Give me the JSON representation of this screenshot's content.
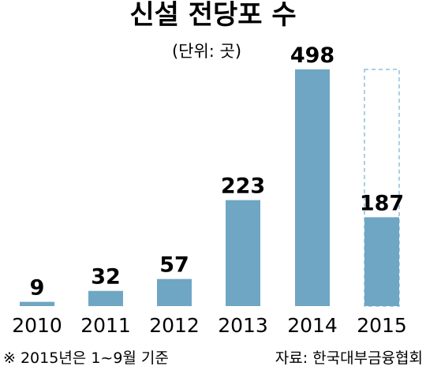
{
  "chart_data": {
    "type": "bar",
    "title": "신설 전당포 수",
    "unit": "(단위: 곳)",
    "categories": [
      "2010",
      "2011",
      "2012",
      "2013",
      "2014",
      "2015"
    ],
    "values": [
      9,
      32,
      57,
      223,
      498,
      187
    ],
    "data_labels": [
      "9",
      "32",
      "57",
      "223",
      "498",
      "187"
    ],
    "ylim": [
      0,
      498
    ],
    "bar_color": "#6fa6c4",
    "partial_outline_color": "#8fbfdc",
    "partial_year_reference_value": 498,
    "grid": false,
    "legend": "none",
    "footnote": "※ 2015년은 1~9월 기준",
    "source": "자료: 한국대부금융협회"
  }
}
